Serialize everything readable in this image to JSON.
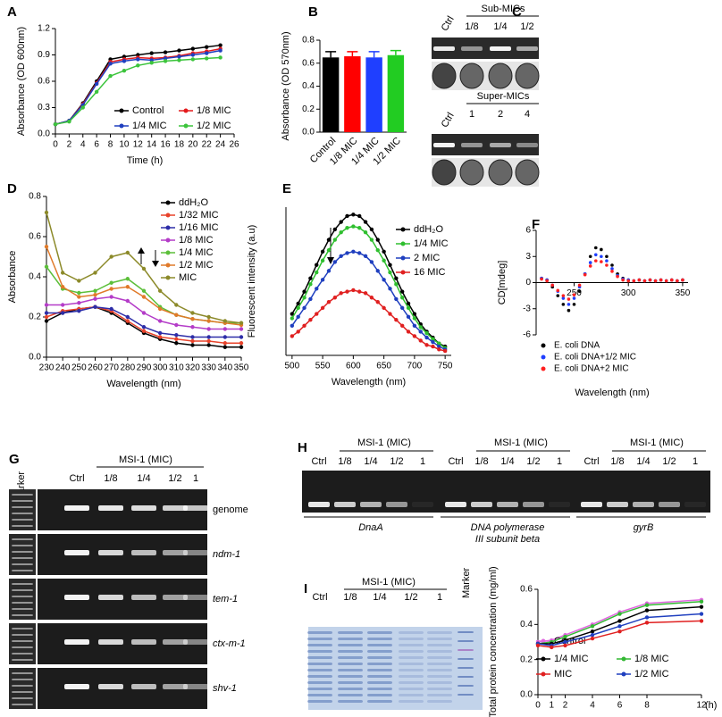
{
  "chart_data": [
    {
      "type": "line",
      "panel": "A",
      "x_label": "Time (h)",
      "y_label": "Absorbance (OD 600nm)",
      "x": [
        0,
        2,
        4,
        6,
        8,
        10,
        12,
        14,
        16,
        18,
        20,
        22,
        24
      ],
      "xlim": [
        0,
        26
      ],
      "xticks": [
        0,
        2,
        4,
        6,
        8,
        10,
        12,
        14,
        16,
        18,
        20,
        22,
        24,
        26
      ],
      "ylim": [
        0,
        1.2
      ],
      "yticks": [
        {
          "value": 0,
          "label": "0.0"
        },
        0.3,
        0.6,
        0.9,
        1.2
      ],
      "series": [
        {
          "name": "Control",
          "color": "#000000",
          "values": [
            0.11,
            0.15,
            0.35,
            0.6,
            0.85,
            0.88,
            0.9,
            0.92,
            0.93,
            0.95,
            0.97,
            0.99,
            1.01
          ]
        },
        {
          "name": "1/8 MIC",
          "color": "#e41a1c",
          "values": [
            0.11,
            0.15,
            0.34,
            0.58,
            0.82,
            0.85,
            0.87,
            0.86,
            0.87,
            0.89,
            0.92,
            0.94,
            0.97
          ]
        },
        {
          "name": "1/4 MIC",
          "color": "#1f3fbf",
          "values": [
            0.11,
            0.15,
            0.33,
            0.57,
            0.8,
            0.83,
            0.85,
            0.84,
            0.86,
            0.88,
            0.9,
            0.92,
            0.95
          ]
        },
        {
          "name": "1/2 MIC",
          "color": "#3cc43c",
          "values": [
            0.11,
            0.14,
            0.3,
            0.48,
            0.66,
            0.72,
            0.78,
            0.81,
            0.83,
            0.84,
            0.85,
            0.86,
            0.87
          ]
        }
      ]
    },
    {
      "type": "bar",
      "panel": "B",
      "y_label": "Absorbance (OD 570nm)",
      "categories": [
        "Control",
        "1/8 MIC",
        "1/4 MIC",
        "1/2 MIC"
      ],
      "values": [
        0.65,
        0.66,
        0.65,
        0.67
      ],
      "errors": [
        0.05,
        0.04,
        0.05,
        0.04
      ],
      "colors": [
        "#000000",
        "#ff0000",
        "#1f3fff",
        "#22cc22"
      ],
      "ylim": [
        0,
        0.8
      ],
      "yticks": [
        {
          "value": 0,
          "label": "0.0"
        },
        0.2,
        0.4,
        0.6,
        0.8
      ]
    },
    {
      "type": "line",
      "panel": "D",
      "x_label": "Wavelength (nm)",
      "y_label": "Absorbance",
      "x": [
        230,
        240,
        250,
        260,
        270,
        280,
        290,
        300,
        310,
        320,
        330,
        340,
        350
      ],
      "xlim": [
        230,
        350
      ],
      "xticks": [
        230,
        240,
        250,
        260,
        270,
        280,
        290,
        300,
        310,
        320,
        330,
        340,
        350
      ],
      "ylim": [
        0,
        0.8
      ],
      "yticks": [
        {
          "value": 0,
          "label": "0.0"
        },
        0.2,
        0.4,
        0.6,
        0.8
      ],
      "series": [
        {
          "name": "ddH₂O",
          "color": "#000000",
          "values": [
            0.18,
            0.22,
            0.24,
            0.25,
            0.22,
            0.17,
            0.12,
            0.09,
            0.07,
            0.06,
            0.06,
            0.05,
            0.05
          ]
        },
        {
          "name": "1/32 MIC",
          "color": "#e8432b",
          "values": [
            0.2,
            0.23,
            0.24,
            0.25,
            0.23,
            0.18,
            0.13,
            0.1,
            0.09,
            0.08,
            0.08,
            0.07,
            0.07
          ]
        },
        {
          "name": "1/16 MIC",
          "color": "#2d2da8",
          "values": [
            0.22,
            0.22,
            0.23,
            0.25,
            0.24,
            0.2,
            0.15,
            0.12,
            0.11,
            0.1,
            0.1,
            0.1,
            0.1
          ]
        },
        {
          "name": "1/8 MIC",
          "color": "#b43cc8",
          "values": [
            0.26,
            0.26,
            0.27,
            0.29,
            0.3,
            0.28,
            0.22,
            0.18,
            0.16,
            0.15,
            0.14,
            0.14,
            0.14
          ]
        },
        {
          "name": "1/4 MIC",
          "color": "#5cbf3a",
          "values": [
            0.45,
            0.34,
            0.32,
            0.33,
            0.37,
            0.39,
            0.33,
            0.25,
            0.21,
            0.19,
            0.18,
            0.17,
            0.17
          ]
        },
        {
          "name": "1/2 MIC",
          "color": "#e07a2a",
          "values": [
            0.55,
            0.35,
            0.3,
            0.31,
            0.34,
            0.35,
            0.3,
            0.24,
            0.21,
            0.19,
            0.18,
            0.17,
            0.16
          ]
        },
        {
          "name": "MIC",
          "color": "#8c8a2a",
          "values": [
            0.72,
            0.42,
            0.38,
            0.42,
            0.5,
            0.52,
            0.44,
            0.33,
            0.26,
            0.22,
            0.2,
            0.18,
            0.17
          ]
        }
      ]
    },
    {
      "type": "line",
      "panel": "E",
      "x_label": "Wavelength (nm)",
      "y_label": "Fluorescent intensity (a.u)",
      "x": [
        500,
        510,
        520,
        530,
        540,
        550,
        560,
        570,
        580,
        590,
        600,
        610,
        620,
        630,
        640,
        650,
        660,
        670,
        680,
        690,
        700,
        710,
        720,
        730,
        740,
        750
      ],
      "xlim": [
        490,
        760
      ],
      "xticks": [
        500,
        550,
        600,
        650,
        700,
        750
      ],
      "ylim": [
        0,
        100
      ],
      "series": [
        {
          "name": "ddH₂O",
          "color": "#000000",
          "values": [
            28,
            35,
            43,
            52,
            61,
            70,
            78,
            85,
            90,
            94,
            95,
            94,
            90,
            85,
            78,
            70,
            61,
            52,
            43,
            35,
            28,
            21,
            16,
            12,
            8,
            6
          ]
        },
        {
          "name": "1/4 MIC",
          "color": "#2fbf2f",
          "values": [
            25,
            32,
            39,
            48,
            56,
            64,
            71,
            78,
            83,
            86,
            87,
            86,
            83,
            78,
            71,
            64,
            56,
            48,
            39,
            32,
            25,
            19,
            15,
            11,
            8,
            5
          ]
        },
        {
          "name": "2 MIC",
          "color": "#1f3fbf",
          "values": [
            20,
            26,
            32,
            38,
            45,
            51,
            57,
            63,
            67,
            69,
            70,
            69,
            67,
            63,
            57,
            51,
            45,
            38,
            32,
            26,
            20,
            16,
            12,
            9,
            6,
            4
          ]
        },
        {
          "name": "16 MIC",
          "color": "#e02020",
          "values": [
            13,
            16,
            20,
            24,
            28,
            32,
            36,
            39,
            42,
            43,
            44,
            43,
            42,
            39,
            36,
            32,
            28,
            24,
            20,
            16,
            13,
            10,
            7,
            6,
            4,
            3
          ]
        }
      ]
    },
    {
      "type": "scatter",
      "panel": "F",
      "x_label": "Wavelength (nm)",
      "y_label": "CD[mdeg]",
      "x": [
        220,
        225,
        230,
        235,
        240,
        245,
        250,
        255,
        260,
        265,
        270,
        275,
        280,
        285,
        290,
        295,
        300,
        305,
        310,
        315,
        320,
        325,
        330,
        335,
        340,
        345,
        350
      ],
      "xlim": [
        215,
        355
      ],
      "xticks": [
        250,
        300,
        350
      ],
      "ylim": [
        -6,
        6
      ],
      "yticks": [
        -6,
        -3,
        0,
        3,
        6
      ],
      "series": [
        {
          "name": "E. coli DNA",
          "color": "#000000",
          "values": [
            0.5,
            0.3,
            -0.5,
            -1.5,
            -2.5,
            -3.2,
            -2.5,
            -1,
            1,
            3,
            4,
            3.8,
            3,
            2,
            1,
            0.5,
            0.3,
            0.2,
            0.3,
            0.2,
            0.3,
            0.2,
            0.3,
            0.2,
            0.3,
            0.2,
            0.3
          ]
        },
        {
          "name": "E. coli DNA+1/2 MIC",
          "color": "#1f3fff",
          "values": [
            0.5,
            0.3,
            -0.3,
            -1,
            -1.8,
            -2.5,
            -1.8,
            -0.5,
            1,
            2.3,
            3.2,
            3,
            2.5,
            1.6,
            0.8,
            0.4,
            0.3,
            0.2,
            0.3,
            0.2,
            0.3,
            0.2,
            0.3,
            0.2,
            0.3,
            0.2,
            0.3
          ]
        },
        {
          "name": "E. coli DNA+2 MIC",
          "color": "#ff2020",
          "values": [
            0.4,
            0.2,
            -0.3,
            -0.9,
            -1.5,
            -1.9,
            -1.4,
            -0.3,
            0.9,
            1.9,
            2.5,
            2.4,
            2,
            1.3,
            0.7,
            0.3,
            0.2,
            0.2,
            0.3,
            0.2,
            0.3,
            0.2,
            0.3,
            0.2,
            0.3,
            0.2,
            0.3
          ]
        }
      ]
    },
    {
      "type": "line",
      "x_label": "(h)",
      "y_label": "Total protein concentration (mg/ml)",
      "x": [
        0,
        1,
        2,
        4,
        6,
        8,
        12
      ],
      "xlim": [
        0,
        12
      ],
      "xticks": [
        0,
        1,
        2,
        4,
        6,
        8,
        12
      ],
      "ylim": [
        0,
        0.6
      ],
      "yticks": [
        {
          "value": 0,
          "label": "0.0"
        },
        0.2,
        0.4,
        0.6
      ],
      "series": [
        {
          "name": "Control",
          "color": "#e066e0",
          "values": [
            0.3,
            0.31,
            0.34,
            0.4,
            0.47,
            0.52,
            0.54
          ]
        },
        {
          "name": "1/8 MIC",
          "color": "#33b833",
          "values": [
            0.29,
            0.3,
            0.33,
            0.39,
            0.46,
            0.51,
            0.53
          ]
        },
        {
          "name": "1/4 MIC",
          "color": "#000000",
          "values": [
            0.29,
            0.29,
            0.31,
            0.36,
            0.42,
            0.48,
            0.5
          ]
        },
        {
          "name": "1/2 MIC",
          "color": "#1f3fbf",
          "values": [
            0.29,
            0.28,
            0.3,
            0.34,
            0.39,
            0.44,
            0.46
          ]
        },
        {
          "name": "MIC",
          "color": "#e02020",
          "values": [
            0.28,
            0.27,
            0.28,
            0.32,
            0.36,
            0.41,
            0.42
          ]
        }
      ]
    }
  ],
  "gels": {
    "C": {
      "panel": "C",
      "sub_label": "Sub-MICs",
      "sub_lanes": [
        "Ctrl",
        "1/8",
        "1/4",
        "1/2"
      ],
      "super_label": "Super-MICs",
      "super_lanes": [
        "Ctrl",
        "1",
        "2",
        "4"
      ]
    },
    "G": {
      "panel": "G",
      "marker": "Marker",
      "group": "MSI-1 (MIC)",
      "lanes": [
        "Ctrl",
        "1/8",
        "1/4",
        "1/2",
        "1"
      ],
      "genes": [
        "genome",
        "ndm-1",
        "tem-1",
        "ctx-m-1",
        "shv-1"
      ]
    },
    "H": {
      "panel": "H",
      "group": "MSI-1 (MIC)",
      "lanes": [
        "Ctrl",
        "1/8",
        "1/4",
        "1/2",
        "1"
      ],
      "genes": [
        [
          "DnaA"
        ],
        [
          "DNA polymerase",
          "III subunit beta"
        ],
        [
          "gyrB"
        ]
      ]
    },
    "I": {
      "panel": "I",
      "group": "MSI-1 (MIC)",
      "lanes": [
        "Ctrl",
        "1/8",
        "1/4",
        "1/2",
        "1"
      ],
      "marker": "Marker"
    }
  }
}
